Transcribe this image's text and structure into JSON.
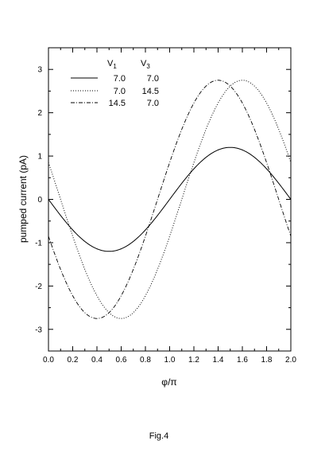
{
  "chart_data": {
    "type": "line",
    "xlabel": "φ/π",
    "ylabel": "pumped current   (pA)",
    "xlim": [
      0,
      2
    ],
    "ylim": [
      -3.5,
      3.5
    ],
    "x_ticks": [
      "0.0",
      "0.2",
      "0.4",
      "0.6",
      "0.8",
      "1.0",
      "1.2",
      "1.4",
      "1.6",
      "1.8",
      "2.0"
    ],
    "y_ticks": [
      "3",
      "2",
      "1",
      "0",
      "-1",
      "-2",
      "-3"
    ],
    "legend": {
      "placement": "top-left",
      "col1": "V",
      "col1_sub": "1",
      "col2": "V",
      "col2_sub": "3",
      "rows": [
        {
          "v1": "7.0",
          "v3": "7.0",
          "style": "solid"
        },
        {
          "v1": "7.0",
          "v3": "14.5",
          "style": "dotted"
        },
        {
          "v1": "14.5",
          "v3": "7.0",
          "style": "dashdot"
        }
      ]
    },
    "series": [
      {
        "style": "solid",
        "amplitude": 1.2,
        "phase_offset": 0.0
      },
      {
        "style": "dotted",
        "amplitude": 2.75,
        "phase_offset": 0.1
      },
      {
        "style": "dashdot",
        "amplitude": 2.75,
        "phase_offset": -0.1
      }
    ],
    "caption": "Fig.4"
  }
}
